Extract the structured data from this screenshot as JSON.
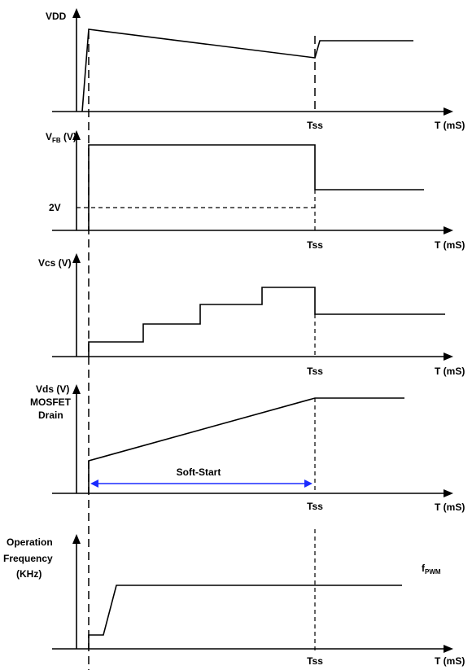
{
  "panels": {
    "vdd": {
      "ylabel": "VDD",
      "tick": "Tss",
      "xlabel": "T (mS)"
    },
    "vfb": {
      "ylabel_main": "V",
      "ylabel_sub": "FB",
      "ylabel_unit": " (V)",
      "level_label": "2V",
      "tick": "Tss",
      "xlabel": "T (mS)"
    },
    "vcs": {
      "ylabel": "Vcs (V)",
      "tick": "Tss",
      "xlabel": "T (mS)"
    },
    "vds": {
      "ylabel_line1": "Vds (V)",
      "ylabel_line2": "MOSFET",
      "ylabel_line3": "Drain",
      "span_label": "Soft-Start",
      "tick": "Tss",
      "xlabel": "T (mS)"
    },
    "freq": {
      "ylabel_line1": "Operation",
      "ylabel_line2": "Frequency",
      "ylabel_line3": "(KHz)",
      "level_main": "f",
      "level_sub": "PWM",
      "tick": "Tss",
      "xlabel": "T (mS)"
    }
  }
}
